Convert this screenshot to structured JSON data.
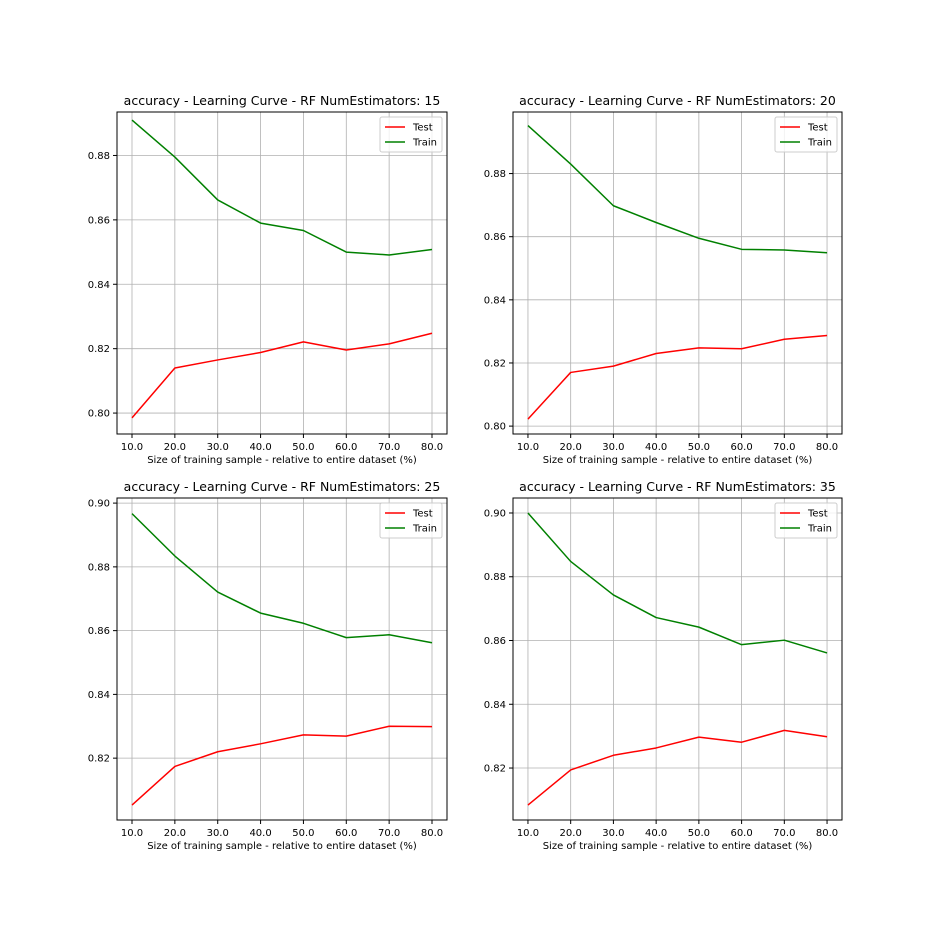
{
  "chart_data": [
    {
      "type": "line",
      "title": "accuracy - Learning Curve - RF NumEstimators: 15",
      "xlabel": "Size of training sample - relative to entire dataset (%)",
      "ylabel": "",
      "x": [
        10.0,
        20.0,
        30.0,
        40.0,
        50.0,
        60.0,
        70.0,
        80.0
      ],
      "x_tick_labels": [
        "10.0",
        "20.0",
        "30.0",
        "40.0",
        "50.0",
        "60.0",
        "70.0",
        "80.0"
      ],
      "xlim": [
        6.5,
        83.5
      ],
      "ylim": [
        0.7935,
        0.8935
      ],
      "yticks": [
        0.8,
        0.82,
        0.84,
        0.86,
        0.88
      ],
      "ytick_labels": [
        "0.80",
        "0.82",
        "0.84",
        "0.86",
        "0.88"
      ],
      "grid": true,
      "legend_position": "top-right",
      "series": [
        {
          "name": "Test",
          "color": "#ff0000",
          "values": [
            0.7985,
            0.814,
            0.8165,
            0.8188,
            0.8221,
            0.8196,
            0.8215,
            0.8248
          ]
        },
        {
          "name": "Train",
          "color": "#008000",
          "values": [
            0.891,
            0.8795,
            0.8662,
            0.859,
            0.8567,
            0.85,
            0.8491,
            0.8508
          ]
        }
      ]
    },
    {
      "type": "line",
      "title": "accuracy - Learning Curve - RF NumEstimators: 20",
      "xlabel": "Size of training sample - relative to entire dataset (%)",
      "ylabel": "",
      "x": [
        10.0,
        20.0,
        30.0,
        40.0,
        50.0,
        60.0,
        70.0,
        80.0
      ],
      "x_tick_labels": [
        "10.0",
        "20.0",
        "30.0",
        "40.0",
        "50.0",
        "60.0",
        "70.0",
        "80.0"
      ],
      "xlim": [
        6.5,
        83.5
      ],
      "ylim": [
        0.7975,
        0.8995
      ],
      "yticks": [
        0.8,
        0.82,
        0.84,
        0.86,
        0.88
      ],
      "ytick_labels": [
        "0.80",
        "0.82",
        "0.84",
        "0.86",
        "0.88"
      ],
      "grid": true,
      "legend_position": "top-right",
      "series": [
        {
          "name": "Test",
          "color": "#ff0000",
          "values": [
            0.8022,
            0.817,
            0.819,
            0.823,
            0.8248,
            0.8245,
            0.8275,
            0.8287
          ]
        },
        {
          "name": "Train",
          "color": "#008000",
          "values": [
            0.8952,
            0.883,
            0.8698,
            0.8645,
            0.8595,
            0.856,
            0.8558,
            0.8549
          ]
        }
      ]
    },
    {
      "type": "line",
      "title": "accuracy - Learning Curve - RF NumEstimators: 25",
      "xlabel": "Size of training sample - relative to entire dataset (%)",
      "ylabel": "",
      "x": [
        10.0,
        20.0,
        30.0,
        40.0,
        50.0,
        60.0,
        70.0,
        80.0
      ],
      "x_tick_labels": [
        "10.0",
        "20.0",
        "30.0",
        "40.0",
        "50.0",
        "60.0",
        "70.0",
        "80.0"
      ],
      "xlim": [
        6.5,
        83.5
      ],
      "ylim": [
        0.8006,
        0.9016
      ],
      "yticks": [
        0.82,
        0.84,
        0.86,
        0.88,
        0.9
      ],
      "ytick_labels": [
        "0.82",
        "0.84",
        "0.86",
        "0.88",
        "0.90"
      ],
      "grid": true,
      "legend_position": "top-right",
      "series": [
        {
          "name": "Test",
          "color": "#ff0000",
          "values": [
            0.8053,
            0.8174,
            0.822,
            0.8245,
            0.8273,
            0.8269,
            0.83,
            0.8299
          ]
        },
        {
          "name": "Train",
          "color": "#008000",
          "values": [
            0.8967,
            0.8834,
            0.8721,
            0.8655,
            0.8623,
            0.8578,
            0.8587,
            0.8562
          ]
        }
      ]
    },
    {
      "type": "line",
      "title": "accuracy - Learning Curve - RF NumEstimators: 35",
      "xlabel": "Size of training sample - relative to entire dataset (%)",
      "ylabel": "",
      "x": [
        10.0,
        20.0,
        30.0,
        40.0,
        50.0,
        60.0,
        70.0,
        80.0
      ],
      "x_tick_labels": [
        "10.0",
        "20.0",
        "30.0",
        "40.0",
        "50.0",
        "60.0",
        "70.0",
        "80.0"
      ],
      "xlim": [
        6.5,
        83.5
      ],
      "ylim": [
        0.8037,
        0.9047
      ],
      "yticks": [
        0.82,
        0.84,
        0.86,
        0.88,
        0.9
      ],
      "ytick_labels": [
        "0.82",
        "0.84",
        "0.86",
        "0.88",
        "0.90"
      ],
      "grid": true,
      "legend_position": "top-right",
      "series": [
        {
          "name": "Test",
          "color": "#ff0000",
          "values": [
            0.8084,
            0.8194,
            0.824,
            0.8263,
            0.8297,
            0.8281,
            0.8318,
            0.8298
          ]
        },
        {
          "name": "Train",
          "color": "#008000",
          "values": [
            0.9,
            0.8848,
            0.8743,
            0.8672,
            0.8642,
            0.8587,
            0.8601,
            0.8561
          ]
        }
      ]
    }
  ]
}
